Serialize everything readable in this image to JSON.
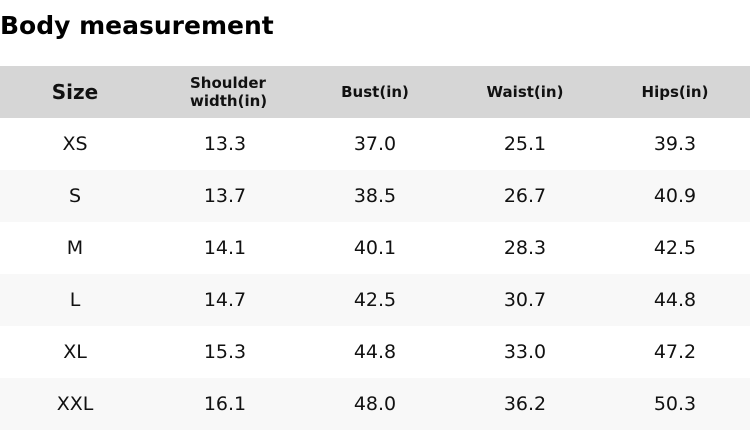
{
  "title": "Body measurement",
  "headers": [
    "Size",
    "Shoulder width(in)",
    "Bust(in)",
    "Waist(in)",
    "Hips(in)"
  ],
  "rows": [
    [
      "XS",
      "13.3",
      "37.0",
      "25.1",
      "39.3"
    ],
    [
      "S",
      "13.7",
      "38.5",
      "26.7",
      "40.9"
    ],
    [
      "M",
      "14.1",
      "40.1",
      "28.3",
      "42.5"
    ],
    [
      "L",
      "14.7",
      "42.5",
      "30.7",
      "44.8"
    ],
    [
      "XL",
      "15.3",
      "44.8",
      "33.0",
      "47.2"
    ],
    [
      "XXL",
      "16.1",
      "48.0",
      "36.2",
      "50.3"
    ]
  ]
}
